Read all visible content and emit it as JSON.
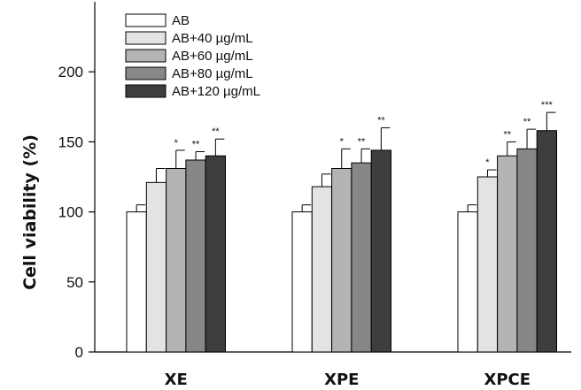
{
  "chart_data": {
    "type": "bar",
    "ylabel": "Cell viability (%)",
    "xlabel": "",
    "ylim": [
      0,
      250
    ],
    "yticks": [
      0,
      50,
      100,
      150,
      200
    ],
    "categories": [
      "XE",
      "XPE",
      "XPCE"
    ],
    "series": [
      {
        "name": "AB",
        "color": "#ffffff",
        "values": [
          100,
          100,
          100
        ],
        "errors": [
          5,
          5,
          5
        ],
        "significance": [
          "",
          "",
          ""
        ]
      },
      {
        "name": "AB+40 µg/mL",
        "color": "#e3e3e3",
        "values": [
          121,
          118,
          125
        ],
        "errors": [
          10,
          9,
          5
        ],
        "significance": [
          "",
          "",
          "*"
        ]
      },
      {
        "name": "AB+60 µg/mL",
        "color": "#b4b4b4",
        "values": [
          131,
          131,
          140
        ],
        "errors": [
          13,
          14,
          10
        ],
        "significance": [
          "*",
          "*",
          "**"
        ]
      },
      {
        "name": "AB+80 µg/mL",
        "color": "#878787",
        "values": [
          137,
          135,
          145
        ],
        "errors": [
          6,
          10,
          14
        ],
        "significance": [
          "**",
          "**",
          "**"
        ]
      },
      {
        "name": "AB+120 µg/mL",
        "color": "#3e3e3e",
        "values": [
          140,
          144,
          158
        ],
        "errors": [
          12,
          16,
          13
        ],
        "significance": [
          "**",
          "**",
          "***"
        ]
      }
    ],
    "legend": "top-left",
    "grid": false
  }
}
